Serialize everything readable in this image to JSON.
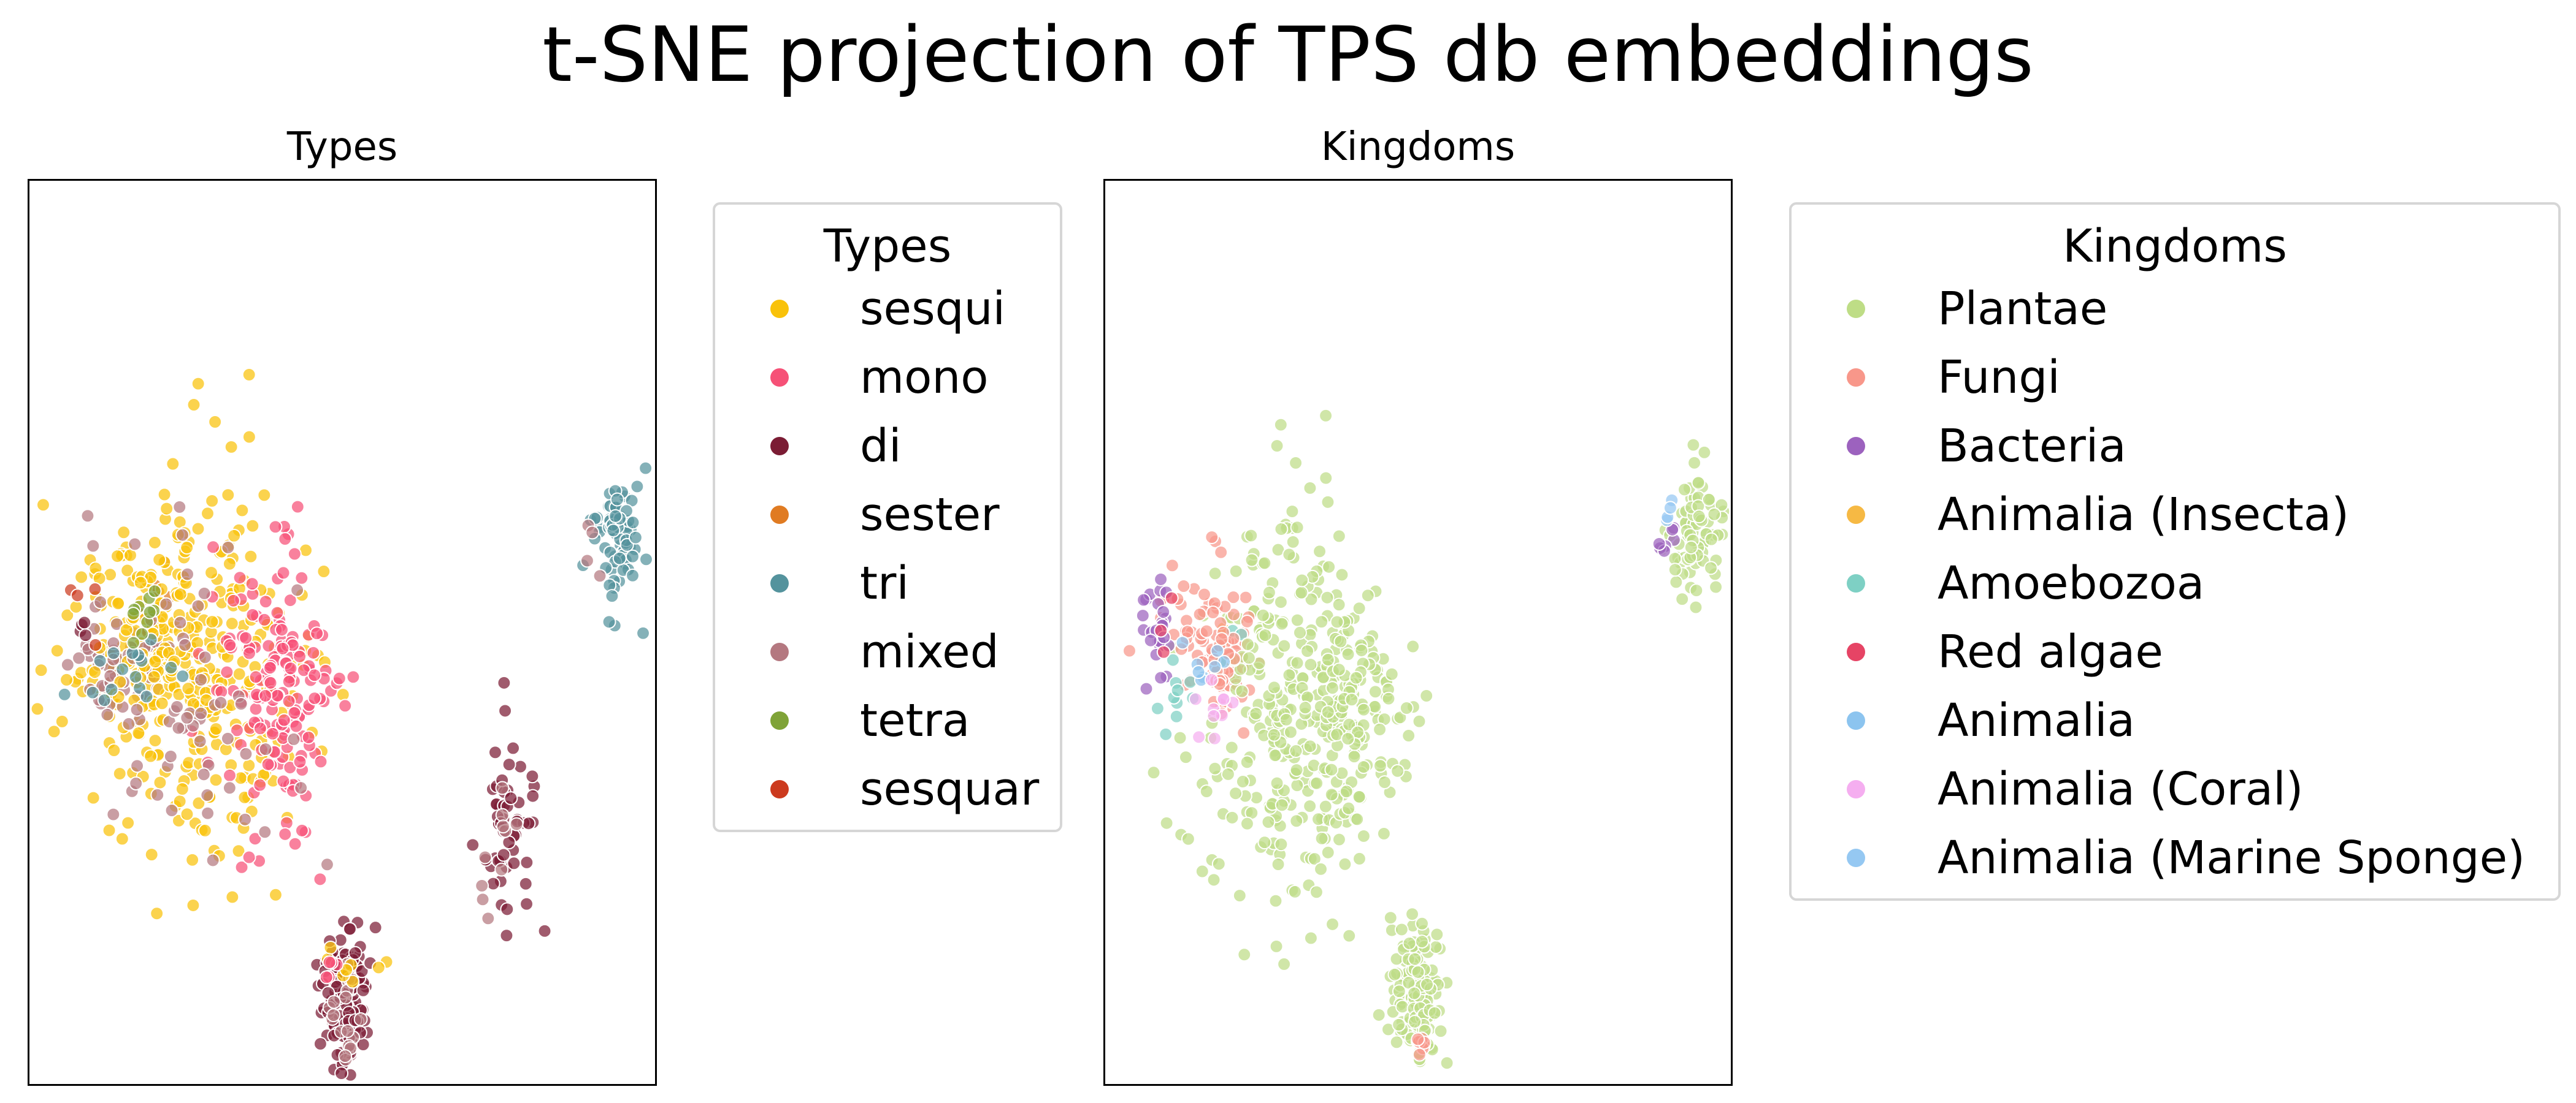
{
  "title": "t-SNE projection of TPS db embeddings",
  "chart_data": [
    {
      "type": "scatter",
      "title": "Types",
      "xlabel": "",
      "ylabel": "",
      "grid": false,
      "axis_ticks": false,
      "legend": {
        "title": "Types",
        "placement": "right-outside",
        "entries": [
          {
            "label": "sesqui",
            "color": "#f9c20a"
          },
          {
            "label": "mono",
            "color": "#f65177"
          },
          {
            "label": "di",
            "color": "#7b1c34"
          },
          {
            "label": "sester",
            "color": "#e07b22"
          },
          {
            "label": "tri",
            "color": "#54939d"
          },
          {
            "label": "mixed",
            "color": "#b47880"
          },
          {
            "label": "tetra",
            "color": "#7fa337"
          },
          {
            "label": "sesquar",
            "color": "#cc3a1e"
          }
        ]
      },
      "clusters": [
        {
          "series": "sesqui",
          "cx": -0.62,
          "cy": 0.45,
          "sx": 0.05,
          "sy": 0.02,
          "n": 35
        },
        {
          "series": "mixed",
          "cx": -0.63,
          "cy": 0.46,
          "sx": 0.03,
          "sy": 0.025,
          "n": 18
        },
        {
          "series": "sester",
          "cx": -0.6,
          "cy": 0.52,
          "sx": 0.03,
          "sy": 0.03,
          "n": 8
        },
        {
          "series": "di",
          "cx": 0.53,
          "cy": 0.27,
          "sx": 0.045,
          "sy": 0.07,
          "n": 55
        },
        {
          "series": "mixed",
          "cx": 0.51,
          "cy": 0.24,
          "sx": 0.04,
          "sy": 0.05,
          "n": 10
        },
        {
          "series": "sesqui",
          "cx": -0.72,
          "cy": 0.48,
          "sx": 0.12,
          "sy": 0.06,
          "n": 90
        },
        {
          "series": "mixed",
          "cx": -0.78,
          "cy": 0.47,
          "sx": 0.05,
          "sy": 0.04,
          "n": 30
        },
        {
          "series": "sesqui",
          "cx": -0.45,
          "cy": 0.45,
          "sx": 0.17,
          "sy": 0.12,
          "n": 280
        },
        {
          "series": "mono",
          "cx": -0.22,
          "cy": 0.42,
          "sx": 0.09,
          "sy": 0.09,
          "n": 170
        },
        {
          "series": "mixed",
          "cx": -0.45,
          "cy": 0.42,
          "sx": 0.17,
          "sy": 0.12,
          "n": 60
        },
        {
          "series": "tri",
          "cx": -0.65,
          "cy": 0.44,
          "sx": 0.08,
          "sy": 0.03,
          "n": 16
        },
        {
          "series": "tetra",
          "cx": -0.66,
          "cy": 0.53,
          "sx": 0.06,
          "sy": 0.02,
          "n": 10
        },
        {
          "series": "sesquar",
          "cx": -0.85,
          "cy": 0.53,
          "sx": 0.03,
          "sy": 0.02,
          "n": 4
        },
        {
          "series": "di",
          "cx": -0.85,
          "cy": 0.51,
          "sx": 0.02,
          "sy": 0.015,
          "n": 4
        },
        {
          "series": "tri",
          "cx": 0.9,
          "cy": 0.62,
          "sx": 0.04,
          "sy": 0.04,
          "n": 80
        },
        {
          "series": "mixed",
          "cx": 0.82,
          "cy": 0.61,
          "sx": 0.02,
          "sy": 0.02,
          "n": 4
        },
        {
          "series": "di",
          "cx": 0.0,
          "cy": 0.05,
          "sx": 0.04,
          "sy": 0.05,
          "n": 130
        },
        {
          "series": "mixed",
          "cx": 0.0,
          "cy": 0.04,
          "sx": 0.04,
          "sy": 0.05,
          "n": 18
        },
        {
          "series": "sesqui",
          "cx": 0.02,
          "cy": 0.1,
          "sx": 0.05,
          "sy": 0.02,
          "n": 8
        },
        {
          "series": "mono",
          "cx": -0.05,
          "cy": 0.08,
          "sx": 0.02,
          "sy": 0.02,
          "n": 5
        }
      ]
    },
    {
      "type": "scatter",
      "title": "Kingdoms",
      "xlabel": "",
      "ylabel": "",
      "grid": false,
      "axis_ticks": false,
      "legend": {
        "title": "Kingdoms",
        "placement": "right-outside",
        "entries": [
          {
            "label": "Plantae",
            "color": "#bedd86"
          },
          {
            "label": "Fungi",
            "color": "#f8978a"
          },
          {
            "label": "Bacteria",
            "color": "#9c62be"
          },
          {
            "label": "Animalia (Insecta)",
            "color": "#f6b944"
          },
          {
            "label": "Amoebozoa",
            "color": "#7ed0c4"
          },
          {
            "label": "Red algae",
            "color": "#e64465"
          },
          {
            "label": "Animalia",
            "color": "#8cc4ef"
          },
          {
            "label": "Animalia (Coral)",
            "color": "#f5aef0"
          },
          {
            "label": "Animalia (Marine Sponge)",
            "color": "#95c8f2"
          }
        ]
      },
      "clusters": [
        {
          "series": "Fungi",
          "cx": -0.62,
          "cy": 0.45,
          "sx": 0.05,
          "sy": 0.025,
          "n": 45
        },
        {
          "series": "Animalia (Insecta)",
          "cx": -0.63,
          "cy": 0.47,
          "sx": 0.02,
          "sy": 0.02,
          "n": 5
        },
        {
          "series": "Amoebozoa",
          "cx": -0.62,
          "cy": 0.48,
          "sx": 0.02,
          "sy": 0.02,
          "n": 3
        },
        {
          "series": "Plantae",
          "cx": 0.9,
          "cy": 0.62,
          "sx": 0.045,
          "sy": 0.045,
          "n": 80
        },
        {
          "series": "Bacteria",
          "cx": 0.81,
          "cy": 0.62,
          "sx": 0.02,
          "sy": 0.02,
          "n": 7
        },
        {
          "series": "Animalia (Marine Sponge)",
          "cx": 0.83,
          "cy": 0.65,
          "sx": 0.015,
          "sy": 0.02,
          "n": 4
        },
        {
          "series": "Plantae",
          "cx": -0.43,
          "cy": 0.4,
          "sx": 0.15,
          "sy": 0.12,
          "n": 300
        },
        {
          "series": "Plantae",
          "cx": -0.2,
          "cy": 0.4,
          "sx": 0.08,
          "sy": 0.08,
          "n": 120
        },
        {
          "series": "Fungi",
          "cx": -0.7,
          "cy": 0.5,
          "sx": 0.08,
          "sy": 0.05,
          "n": 60
        },
        {
          "series": "Bacteria",
          "cx": -0.85,
          "cy": 0.5,
          "sx": 0.03,
          "sy": 0.03,
          "n": 25
        },
        {
          "series": "Amoebozoa",
          "cx": -0.8,
          "cy": 0.42,
          "sx": 0.04,
          "sy": 0.02,
          "n": 10
        },
        {
          "series": "Animalia",
          "cx": -0.7,
          "cy": 0.46,
          "sx": 0.03,
          "sy": 0.02,
          "n": 8
        },
        {
          "series": "Animalia (Coral)",
          "cx": -0.66,
          "cy": 0.39,
          "sx": 0.04,
          "sy": 0.04,
          "n": 10
        },
        {
          "series": "Red algae",
          "cx": -0.82,
          "cy": 0.49,
          "sx": 0.02,
          "sy": 0.02,
          "n": 3
        },
        {
          "series": "Plantae",
          "cx": 0.0,
          "cy": 0.06,
          "sx": 0.04,
          "sy": 0.05,
          "n": 140
        },
        {
          "series": "Fungi",
          "cx": 0.01,
          "cy": 0.0,
          "sx": 0.015,
          "sy": 0.01,
          "n": 8
        }
      ]
    }
  ]
}
